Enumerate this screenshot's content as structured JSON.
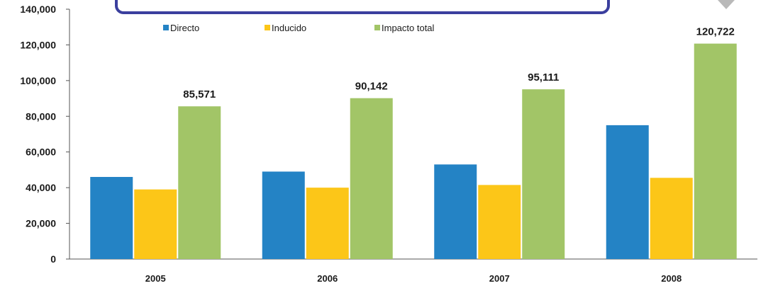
{
  "colors": {
    "directo": "#2483c5",
    "inducido": "#fcc618",
    "impacto_total": "#a2c567",
    "title_box_border": "#3b3f9e",
    "arrow": "#b9b9b9"
  },
  "chart_data": {
    "type": "bar",
    "categories": [
      "2005",
      "2006",
      "2007",
      "2008"
    ],
    "series": [
      {
        "name": "Directo",
        "values": [
          46000,
          49000,
          53000,
          75000
        ]
      },
      {
        "name": "Inducido",
        "values": [
          39000,
          40000,
          41500,
          45500
        ]
      },
      {
        "name": "Impacto total",
        "values": [
          85571,
          90142,
          95111,
          120722
        ]
      }
    ],
    "data_labels": [
      "85,571",
      "90,142",
      "95,111",
      "120,722"
    ],
    "ylim": [
      0,
      140000
    ],
    "yticks": [
      0,
      20000,
      40000,
      60000,
      80000,
      100000,
      120000,
      140000
    ],
    "ytick_labels": [
      "0",
      "20,000",
      "40,000",
      "60,000",
      "80,000",
      "100,000",
      "120,000",
      "140,000"
    ],
    "legend_position": "top",
    "grid": false
  }
}
